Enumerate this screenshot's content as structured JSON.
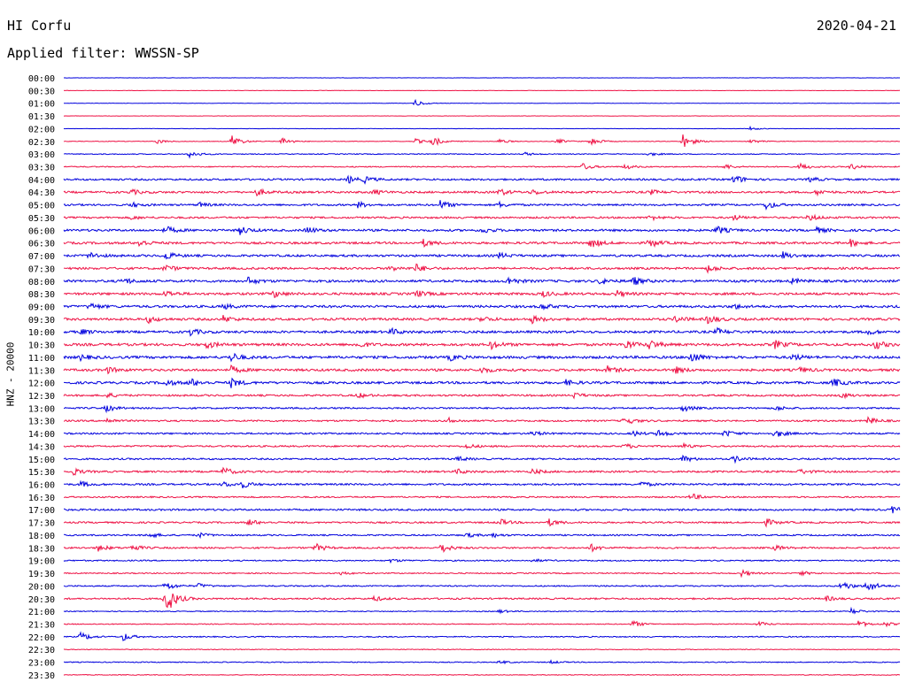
{
  "header": {
    "station": "HI Corfu",
    "date": "2020-04-21",
    "filter": "Applied filter: WWSSN-SP"
  },
  "chart_data": {
    "type": "line",
    "title": "",
    "ylabel": "HNZ - 20000",
    "row_labels": [
      "00:00",
      "00:30",
      "01:00",
      "01:30",
      "02:00",
      "02:30",
      "03:00",
      "03:30",
      "04:00",
      "04:30",
      "05:00",
      "05:30",
      "06:00",
      "06:30",
      "07:00",
      "07:30",
      "08:00",
      "08:30",
      "09:00",
      "09:30",
      "10:00",
      "10:30",
      "11:00",
      "11:30",
      "12:00",
      "12:30",
      "13:00",
      "13:30",
      "14:00",
      "14:30",
      "15:00",
      "15:30",
      "16:00",
      "16:30",
      "17:00",
      "17:30",
      "18:00",
      "18:30",
      "19:00",
      "19:30",
      "20:00",
      "20:30",
      "21:00",
      "21:30",
      "22:00",
      "22:30",
      "23:00",
      "23:30"
    ],
    "colors": [
      "#0000dd",
      "#ee1144"
    ],
    "noise_level": [
      0.2,
      0.2,
      0.2,
      0.2,
      0.2,
      0.3,
      0.5,
      0.6,
      1.0,
      1.1,
      1.0,
      1.0,
      1.2,
      1.2,
      1.2,
      1.2,
      1.3,
      1.3,
      1.3,
      1.3,
      1.3,
      1.4,
      1.4,
      1.3,
      1.3,
      1.0,
      0.9,
      0.9,
      0.9,
      0.9,
      0.9,
      1.0,
      1.0,
      0.8,
      1.0,
      0.9,
      0.8,
      0.9,
      0.7,
      0.6,
      0.7,
      0.9,
      0.5,
      0.5,
      0.6,
      0.4,
      0.5,
      0.4
    ],
    "events": [
      [],
      [],
      [
        {
          "x": 0.42,
          "a": 4
        }
      ],
      [],
      [
        {
          "x": 0.82,
          "a": 2
        }
      ],
      [
        {
          "x": 0.11,
          "a": 3
        },
        {
          "x": 0.2,
          "a": 8
        },
        {
          "x": 0.26,
          "a": 5
        },
        {
          "x": 0.42,
          "a": 3
        },
        {
          "x": 0.44,
          "a": 6
        },
        {
          "x": 0.52,
          "a": 3
        },
        {
          "x": 0.59,
          "a": 3
        },
        {
          "x": 0.63,
          "a": 5
        },
        {
          "x": 0.74,
          "a": 9
        },
        {
          "x": 0.82,
          "a": 3
        }
      ],
      [
        {
          "x": 0.15,
          "a": 4
        },
        {
          "x": 0.55,
          "a": 2
        },
        {
          "x": 0.7,
          "a": 2
        }
      ],
      [
        {
          "x": 0.62,
          "a": 4
        },
        {
          "x": 0.67,
          "a": 3
        },
        {
          "x": 0.79,
          "a": 3
        },
        {
          "x": 0.88,
          "a": 4
        },
        {
          "x": 0.94,
          "a": 4
        }
      ],
      [
        {
          "x": 0.34,
          "a": 4
        },
        {
          "x": 0.36,
          "a": 3
        },
        {
          "x": 0.8,
          "a": 6
        },
        {
          "x": 0.89,
          "a": 3
        }
      ],
      [
        {
          "x": 0.08,
          "a": 3
        },
        {
          "x": 0.23,
          "a": 4
        },
        {
          "x": 0.37,
          "a": 3
        },
        {
          "x": 0.52,
          "a": 4
        },
        {
          "x": 0.56,
          "a": 3
        },
        {
          "x": 0.7,
          "a": 3
        },
        {
          "x": 0.9,
          "a": 3
        }
      ],
      [
        {
          "x": 0.08,
          "a": 3
        },
        {
          "x": 0.16,
          "a": 3
        },
        {
          "x": 0.35,
          "a": 4
        },
        {
          "x": 0.45,
          "a": 5
        },
        {
          "x": 0.52,
          "a": 3
        },
        {
          "x": 0.84,
          "a": 5
        }
      ],
      [
        {
          "x": 0.08,
          "a": 2
        },
        {
          "x": 0.7,
          "a": 3
        },
        {
          "x": 0.8,
          "a": 3
        },
        {
          "x": 0.89,
          "a": 4
        }
      ],
      [
        {
          "x": 0.12,
          "a": 5
        },
        {
          "x": 0.21,
          "a": 5
        },
        {
          "x": 0.29,
          "a": 4
        },
        {
          "x": 0.5,
          "a": 3
        },
        {
          "x": 0.78,
          "a": 5
        },
        {
          "x": 0.9,
          "a": 3
        }
      ],
      [
        {
          "x": 0.09,
          "a": 4
        },
        {
          "x": 0.43,
          "a": 4
        },
        {
          "x": 0.63,
          "a": 6
        },
        {
          "x": 0.7,
          "a": 5
        },
        {
          "x": 0.94,
          "a": 4
        }
      ],
      [
        {
          "x": 0.03,
          "a": 4
        },
        {
          "x": 0.12,
          "a": 5
        },
        {
          "x": 0.52,
          "a": 3
        },
        {
          "x": 0.86,
          "a": 4
        }
      ],
      [
        {
          "x": 0.12,
          "a": 4
        },
        {
          "x": 0.39,
          "a": 3
        },
        {
          "x": 0.42,
          "a": 5
        },
        {
          "x": 0.77,
          "a": 4
        }
      ],
      [
        {
          "x": 0.07,
          "a": 4
        },
        {
          "x": 0.22,
          "a": 4
        },
        {
          "x": 0.53,
          "a": 5
        },
        {
          "x": 0.64,
          "a": 4
        },
        {
          "x": 0.68,
          "a": 5
        },
        {
          "x": 0.87,
          "a": 3
        }
      ],
      [
        {
          "x": 0.12,
          "a": 4
        },
        {
          "x": 0.25,
          "a": 4
        },
        {
          "x": 0.42,
          "a": 4
        },
        {
          "x": 0.57,
          "a": 4
        },
        {
          "x": 0.66,
          "a": 4
        }
      ],
      [
        {
          "x": 0.03,
          "a": 4
        },
        {
          "x": 0.19,
          "a": 3
        },
        {
          "x": 0.57,
          "a": 4
        },
        {
          "x": 0.8,
          "a": 3
        }
      ],
      [
        {
          "x": 0.1,
          "a": 4
        },
        {
          "x": 0.19,
          "a": 4
        },
        {
          "x": 0.5,
          "a": 3
        },
        {
          "x": 0.56,
          "a": 4
        },
        {
          "x": 0.73,
          "a": 4
        },
        {
          "x": 0.77,
          "a": 5
        }
      ],
      [
        {
          "x": 0.02,
          "a": 3
        },
        {
          "x": 0.15,
          "a": 4
        },
        {
          "x": 0.39,
          "a": 4
        },
        {
          "x": 0.78,
          "a": 4
        },
        {
          "x": 0.96,
          "a": 3
        }
      ],
      [
        {
          "x": 0.17,
          "a": 4
        },
        {
          "x": 0.35,
          "a": 4
        },
        {
          "x": 0.51,
          "a": 5
        },
        {
          "x": 0.67,
          "a": 6
        },
        {
          "x": 0.7,
          "a": 5
        },
        {
          "x": 0.85,
          "a": 5
        },
        {
          "x": 0.97,
          "a": 5
        }
      ],
      [
        {
          "x": 0.02,
          "a": 3
        },
        {
          "x": 0.2,
          "a": 5
        },
        {
          "x": 0.46,
          "a": 4
        },
        {
          "x": 0.75,
          "a": 6
        },
        {
          "x": 0.87,
          "a": 4
        }
      ],
      [
        {
          "x": 0.05,
          "a": 4
        },
        {
          "x": 0.2,
          "a": 4
        },
        {
          "x": 0.5,
          "a": 3
        },
        {
          "x": 0.65,
          "a": 4
        },
        {
          "x": 0.73,
          "a": 4
        },
        {
          "x": 0.88,
          "a": 3
        }
      ],
      [
        {
          "x": 0.12,
          "a": 4
        },
        {
          "x": 0.15,
          "a": 5
        },
        {
          "x": 0.2,
          "a": 5
        },
        {
          "x": 0.6,
          "a": 3
        },
        {
          "x": 0.92,
          "a": 5
        }
      ],
      [
        {
          "x": 0.05,
          "a": 3
        },
        {
          "x": 0.35,
          "a": 3
        },
        {
          "x": 0.61,
          "a": 3
        },
        {
          "x": 0.93,
          "a": 3
        }
      ],
      [
        {
          "x": 0.05,
          "a": 4
        },
        {
          "x": 0.74,
          "a": 4
        },
        {
          "x": 0.85,
          "a": 3
        }
      ],
      [
        {
          "x": 0.05,
          "a": 3
        },
        {
          "x": 0.46,
          "a": 3
        },
        {
          "x": 0.67,
          "a": 5
        },
        {
          "x": 0.96,
          "a": 5
        }
      ],
      [
        {
          "x": 0.56,
          "a": 3
        },
        {
          "x": 0.68,
          "a": 3
        },
        {
          "x": 0.71,
          "a": 4
        },
        {
          "x": 0.79,
          "a": 4
        },
        {
          "x": 0.85,
          "a": 5
        }
      ],
      [
        {
          "x": 0.48,
          "a": 3
        },
        {
          "x": 0.67,
          "a": 3
        },
        {
          "x": 0.74,
          "a": 3
        }
      ],
      [
        {
          "x": 0.47,
          "a": 3
        },
        {
          "x": 0.74,
          "a": 4
        },
        {
          "x": 0.8,
          "a": 4
        }
      ],
      [
        {
          "x": 0.01,
          "a": 4
        },
        {
          "x": 0.19,
          "a": 5
        },
        {
          "x": 0.47,
          "a": 3
        },
        {
          "x": 0.56,
          "a": 3
        },
        {
          "x": 0.88,
          "a": 3
        }
      ],
      [
        {
          "x": 0.02,
          "a": 3
        },
        {
          "x": 0.19,
          "a": 3
        },
        {
          "x": 0.21,
          "a": 5
        },
        {
          "x": 0.69,
          "a": 3
        }
      ],
      [
        {
          "x": 0.75,
          "a": 4
        }
      ],
      [
        {
          "x": 0.99,
          "a": 4
        }
      ],
      [
        {
          "x": 0.22,
          "a": 4
        },
        {
          "x": 0.52,
          "a": 4
        },
        {
          "x": 0.58,
          "a": 4
        },
        {
          "x": 0.84,
          "a": 4
        }
      ],
      [
        {
          "x": 0.1,
          "a": 4
        },
        {
          "x": 0.16,
          "a": 3
        },
        {
          "x": 0.48,
          "a": 3
        },
        {
          "x": 0.51,
          "a": 3
        }
      ],
      [
        {
          "x": 0.04,
          "a": 4
        },
        {
          "x": 0.08,
          "a": 4
        },
        {
          "x": 0.3,
          "a": 5
        },
        {
          "x": 0.45,
          "a": 6
        },
        {
          "x": 0.63,
          "a": 4
        },
        {
          "x": 0.85,
          "a": 3
        }
      ],
      [
        {
          "x": 0.39,
          "a": 2
        },
        {
          "x": 0.56,
          "a": 2
        }
      ],
      [
        {
          "x": 0.33,
          "a": 2
        },
        {
          "x": 0.81,
          "a": 4
        },
        {
          "x": 0.88,
          "a": 3
        }
      ],
      [
        {
          "x": 0.12,
          "a": 6
        },
        {
          "x": 0.16,
          "a": 3
        },
        {
          "x": 0.93,
          "a": 6
        },
        {
          "x": 0.96,
          "a": 8
        }
      ],
      [
        {
          "x": 0.12,
          "a": 22
        },
        {
          "x": 0.37,
          "a": 3
        },
        {
          "x": 0.91,
          "a": 3
        }
      ],
      [
        {
          "x": 0.52,
          "a": 2
        },
        {
          "x": 0.94,
          "a": 4
        }
      ],
      [
        {
          "x": 0.68,
          "a": 4
        },
        {
          "x": 0.83,
          "a": 3
        },
        {
          "x": 0.95,
          "a": 4
        },
        {
          "x": 0.98,
          "a": 3
        }
      ],
      [
        {
          "x": 0.02,
          "a": 5
        },
        {
          "x": 0.07,
          "a": 5
        }
      ],
      [],
      [
        {
          "x": 0.52,
          "a": 2
        },
        {
          "x": 0.58,
          "a": 2
        }
      ],
      []
    ]
  }
}
